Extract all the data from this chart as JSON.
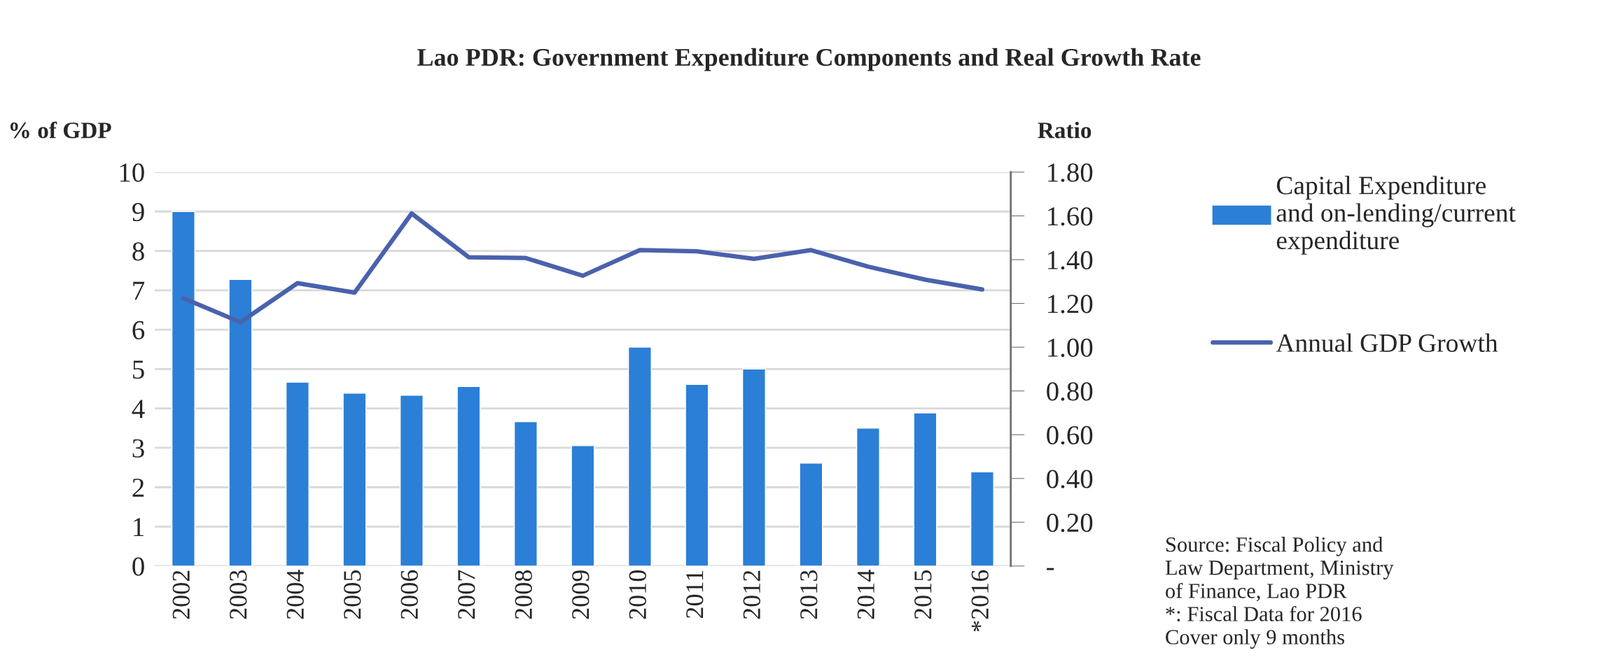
{
  "chart_data": {
    "type": "bar",
    "title": "Lao PDR: Government Expenditure Components and Real Growth Rate",
    "ylabel": "% of GDP",
    "y2label": "Ratio",
    "categories": [
      "2002",
      "2003",
      "2004",
      "2005",
      "2006",
      "2007",
      "2008",
      "2009",
      "2010",
      "2011",
      "2012",
      "2013",
      "2014",
      "2015",
      "*2016"
    ],
    "series": [
      {
        "name": "Capital Expenditure and on-lending/current expenditure",
        "axis": "y2",
        "color": "#2b7fd6",
        "values": [
          1.62,
          1.31,
          0.84,
          0.79,
          0.78,
          0.82,
          0.66,
          0.55,
          1.0,
          0.83,
          0.9,
          0.47,
          0.63,
          0.7,
          0.43
        ]
      },
      {
        "name": "Annual GDP Growth",
        "type": "line",
        "axis": "y",
        "color": "#4a61ad",
        "values": [
          6.8,
          6.19,
          7.18,
          6.94,
          8.95,
          7.84,
          7.82,
          7.37,
          8.02,
          7.99,
          7.8,
          8.02,
          7.6,
          7.27,
          7.02
        ]
      }
    ],
    "ylim": [
      0,
      10
    ],
    "yticks": [
      0,
      1,
      2,
      3,
      4,
      5,
      6,
      7,
      8,
      9,
      10
    ],
    "y2lim": [
      0,
      1.8
    ],
    "y2ticks": [
      {
        "value": 0,
        "label": "-"
      },
      {
        "value": 0.2,
        "label": "0.20"
      },
      {
        "value": 0.4,
        "label": "0.40"
      },
      {
        "value": 0.6,
        "label": "0.60"
      },
      {
        "value": 0.8,
        "label": "0.80"
      },
      {
        "value": 1.0,
        "label": "1.00"
      },
      {
        "value": 1.2,
        "label": "1.20"
      },
      {
        "value": 1.4,
        "label": "1.40"
      },
      {
        "value": 1.6,
        "label": "1.60"
      },
      {
        "value": 1.8,
        "label": "1.80"
      }
    ],
    "grid": "y",
    "legend": "right",
    "line_style": "solid",
    "marker": "none",
    "annotations": [
      "Source: Fiscal Policy and\nLaw Department, Ministry\nof Finance, Lao PDR\n*: Fiscal Data for 2016\nCover only 9 months"
    ]
  }
}
